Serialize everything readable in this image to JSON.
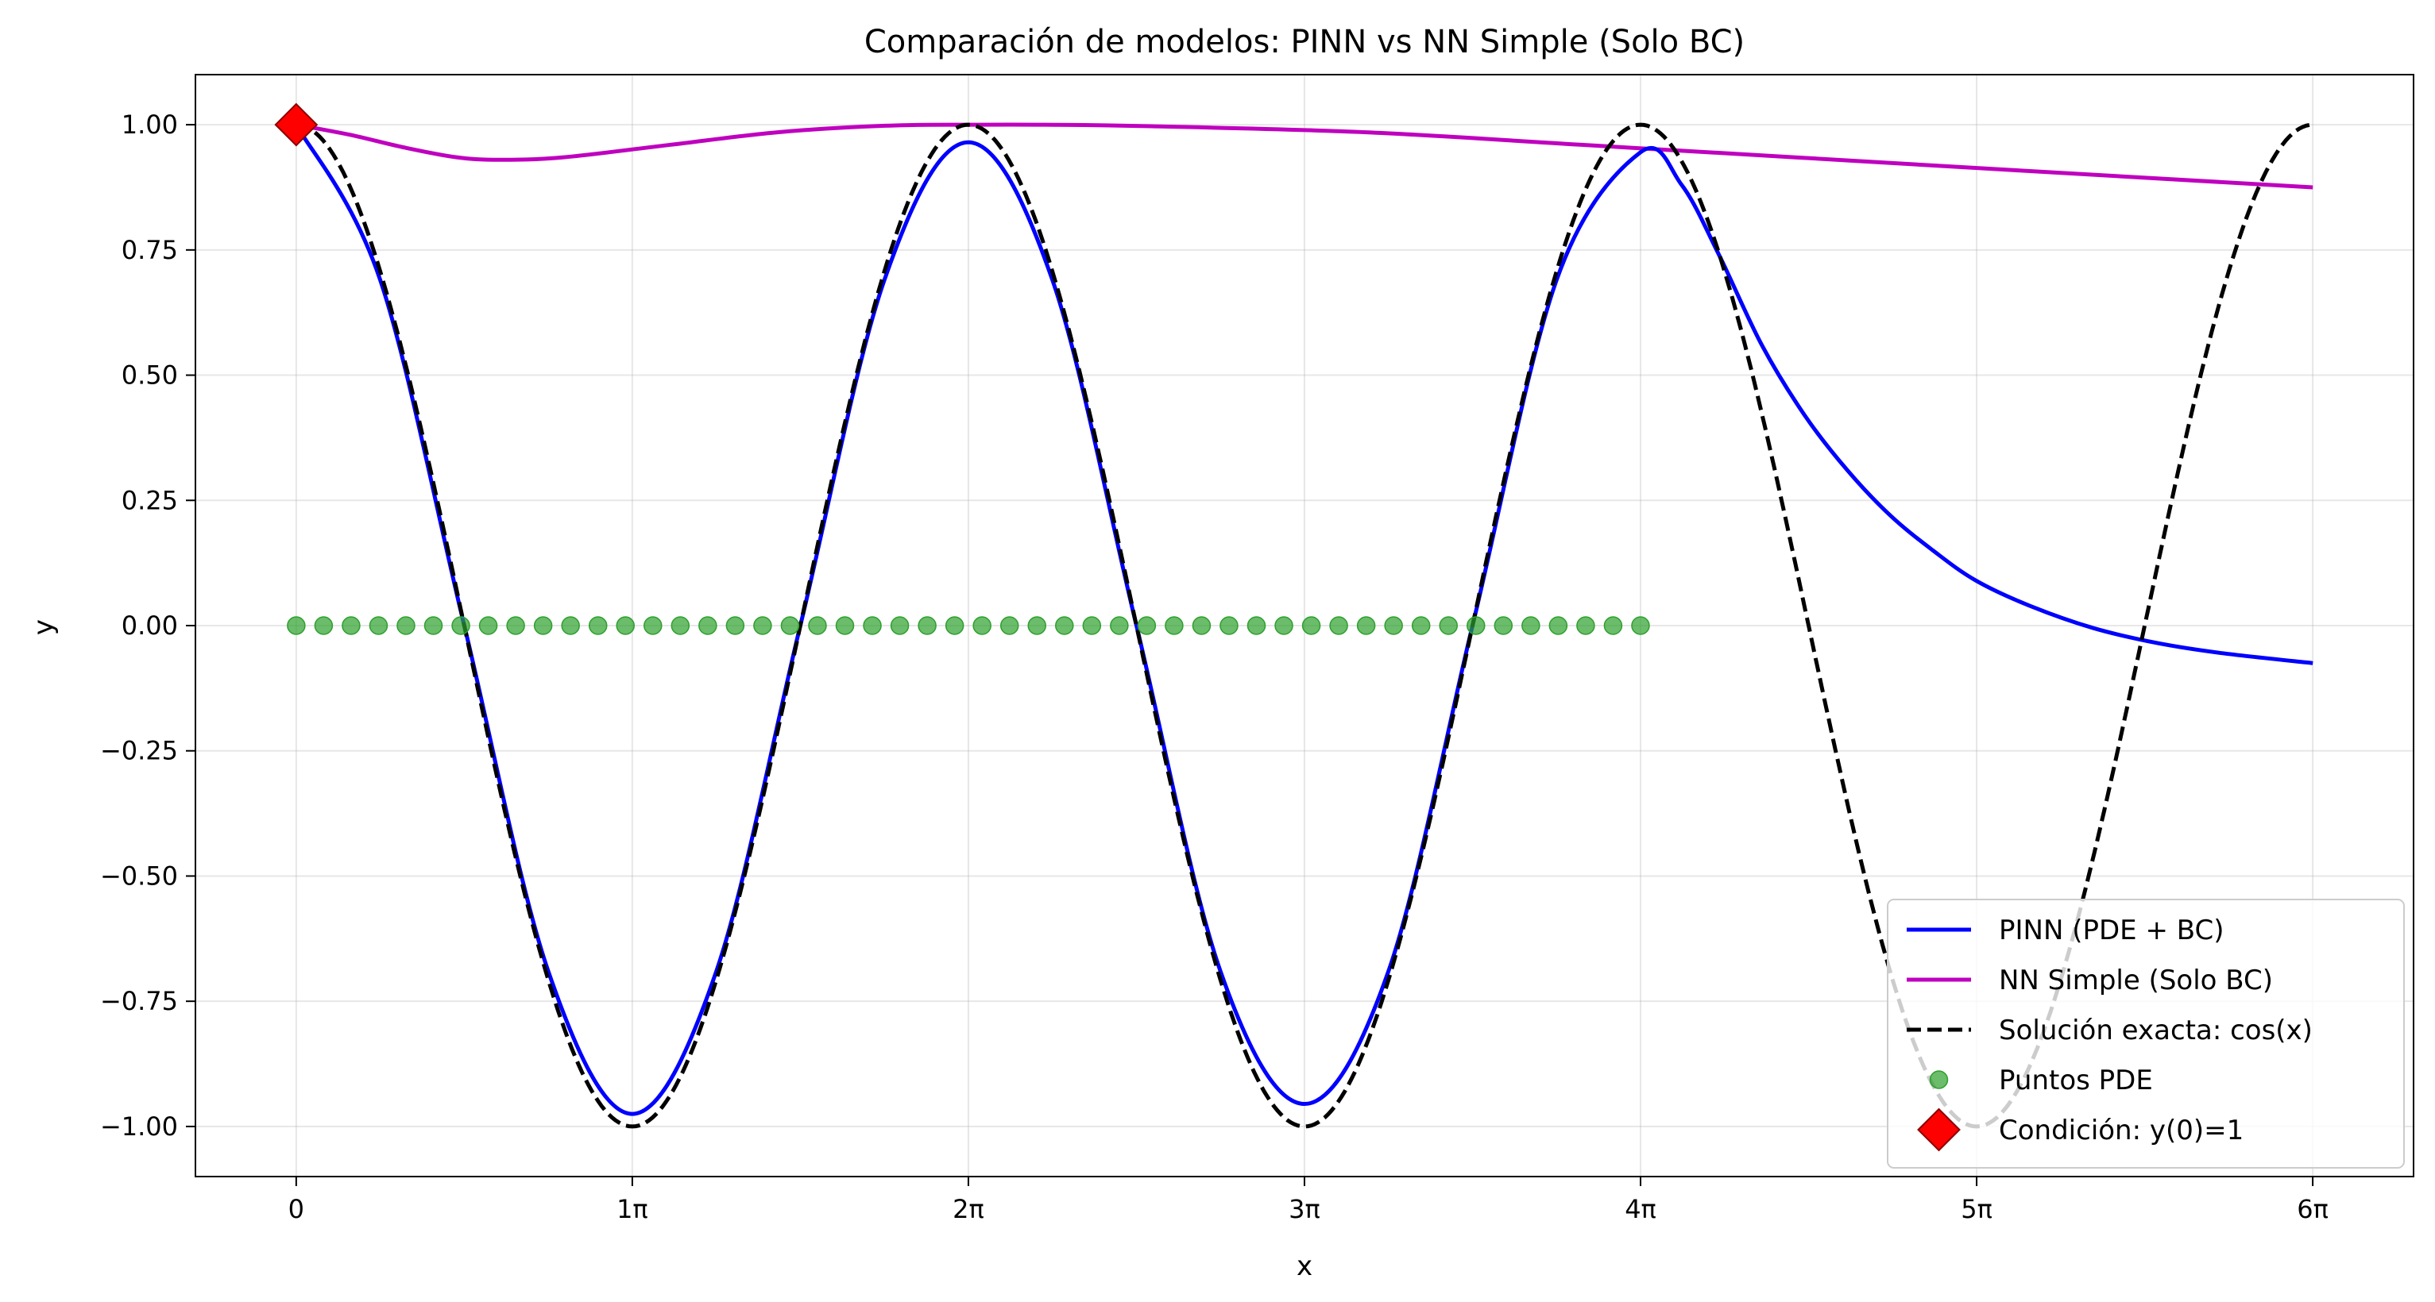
{
  "chart_data": {
    "type": "line",
    "title": "Comparación de modelos: PINN vs NN Simple (Solo BC)",
    "xlabel": "x",
    "ylabel": "y",
    "xlim": [
      -0.942,
      19.792
    ],
    "ylim": [
      -1.1,
      1.1
    ],
    "grid": true,
    "legend_position": "bottom-right",
    "xticks": [
      {
        "value": 0,
        "label": "0"
      },
      {
        "value": 3.14159,
        "label": "1π"
      },
      {
        "value": 6.28319,
        "label": "2π"
      },
      {
        "value": 9.42478,
        "label": "3π"
      },
      {
        "value": 12.56637,
        "label": "4π"
      },
      {
        "value": 15.70796,
        "label": "5π"
      },
      {
        "value": 18.84956,
        "label": "6π"
      }
    ],
    "yticks": [
      {
        "value": 1.0,
        "label": "1.00"
      },
      {
        "value": 0.75,
        "label": "0.75"
      },
      {
        "value": 0.5,
        "label": "0.50"
      },
      {
        "value": 0.25,
        "label": "0.25"
      },
      {
        "value": 0.0,
        "label": "0.00"
      },
      {
        "value": -0.25,
        "label": "−0.25"
      },
      {
        "value": -0.5,
        "label": "−0.50"
      },
      {
        "value": -0.75,
        "label": "−0.75"
      },
      {
        "value": -1.0,
        "label": "−1.00"
      }
    ],
    "series": [
      {
        "name": "PINN (PDE + BC)",
        "kind": "line",
        "color": "#0000ff",
        "dash": "solid",
        "x": [
          0,
          0.785,
          1.571,
          2.356,
          3.142,
          3.927,
          4.712,
          5.498,
          6.283,
          7.069,
          7.854,
          8.639,
          9.425,
          10.21,
          10.996,
          11.781,
          12.566,
          12.95,
          13.3,
          13.7,
          14.1,
          14.5,
          14.9,
          15.3,
          15.7,
          16.2,
          16.8,
          17.4,
          18.0,
          18.85
        ],
        "y": [
          1.0,
          0.69,
          0.0,
          -0.69,
          -0.975,
          -0.69,
          0.0,
          0.69,
          0.965,
          0.69,
          0.0,
          -0.69,
          -0.955,
          -0.69,
          0.0,
          0.69,
          0.945,
          0.88,
          0.74,
          0.56,
          0.42,
          0.31,
          0.22,
          0.15,
          0.09,
          0.04,
          -0.005,
          -0.035,
          -0.055,
          -0.075
        ]
      },
      {
        "name": "NN Simple (Solo BC)",
        "kind": "line",
        "color": "#bf00bf",
        "dash": "solid",
        "x": [
          0,
          0.5,
          1.0,
          1.5,
          1.9,
          2.5,
          3.5,
          4.5,
          5.5,
          6.3,
          7.0,
          8.0,
          10.0,
          12.0,
          14.0,
          16.0,
          18.85
        ],
        "y": [
          1.0,
          0.98,
          0.955,
          0.935,
          0.93,
          0.935,
          0.96,
          0.985,
          0.998,
          1.0,
          1.0,
          0.997,
          0.985,
          0.96,
          0.935,
          0.91,
          0.875
        ]
      },
      {
        "name": "Solución exacta: cos(x)",
        "kind": "function_cos",
        "color": "#000000",
        "dash": "dashed",
        "x_range": [
          0,
          18.85
        ]
      },
      {
        "name": "Puntos PDE",
        "kind": "scatter",
        "color": "#2ca02c",
        "x_range": [
          0,
          12.566
        ],
        "count": 50,
        "y": 0.0
      },
      {
        "name": "Condición: y(0)=1",
        "kind": "marker",
        "color": "#ff0000",
        "marker": "diamond",
        "x": [
          0
        ],
        "y": [
          1.0
        ]
      }
    ]
  }
}
